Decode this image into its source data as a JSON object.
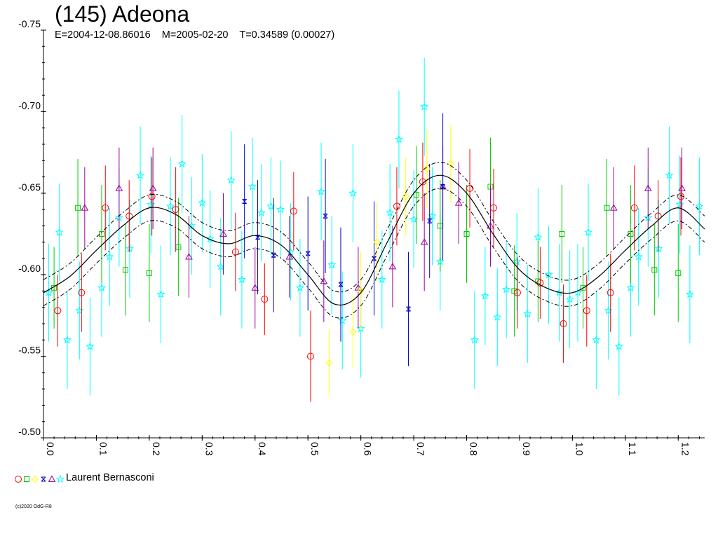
{
  "title": "(145) Adeona",
  "subtitle": "E=2004-12-08.86016    M=2005-02-20    T=0.34589 (0.00027)",
  "legend": {
    "label": "Laurent Bernasconi",
    "markers": [
      {
        "symbol": "circle",
        "color": "#ff0000"
      },
      {
        "symbol": "square",
        "color": "#00cc00"
      },
      {
        "symbol": "diamond",
        "color": "#ffff00"
      },
      {
        "symbol": "xsquare",
        "color": "#0000cc"
      },
      {
        "symbol": "triangle",
        "color": "#990099"
      },
      {
        "symbol": "star",
        "color": "#00ffff"
      }
    ]
  },
  "credit": "(c)2020 OdG-R8",
  "chart_data": {
    "type": "scatter",
    "xlim": [
      0,
      1.25
    ],
    "ylim": [
      -0.75,
      -0.5
    ],
    "y_inverted": true,
    "xticks": [
      "0.0",
      "0.1",
      "0.2",
      "0.3",
      "0.4",
      "0.5",
      "0.6",
      "0.7",
      "0.8",
      "0.9",
      "1.0",
      "1.1",
      "1.2"
    ],
    "yticks": [
      "-0.75",
      "-0.70",
      "-0.65",
      "-0.60",
      "-0.55",
      "-0.50"
    ],
    "fit_curve": {
      "x": [
        0.0,
        0.05,
        0.1,
        0.15,
        0.2,
        0.25,
        0.3,
        0.35,
        0.4,
        0.45,
        0.5,
        0.55,
        0.6,
        0.65,
        0.7,
        0.75,
        0.8,
        0.85,
        0.9,
        0.95,
        1.0,
        1.05,
        1.1,
        1.15,
        1.2,
        1.25
      ],
      "y": [
        -0.589,
        -0.599,
        -0.615,
        -0.63,
        -0.641,
        -0.637,
        -0.624,
        -0.619,
        -0.624,
        -0.618,
        -0.6,
        -0.582,
        -0.589,
        -0.62,
        -0.65,
        -0.661,
        -0.65,
        -0.625,
        -0.603,
        -0.592,
        -0.589,
        -0.599,
        -0.615,
        -0.63,
        -0.641,
        -0.628
      ],
      "band": 0.008
    },
    "series": [
      {
        "name": "",
        "marker": "circle",
        "color": "#ff0000",
        "points": [
          {
            "x": 0.027,
            "y": -0.578,
            "e": 0.022
          },
          {
            "x": 0.072,
            "y": -0.589,
            "e": 0.024
          },
          {
            "x": 0.117,
            "y": -0.641,
            "e": 0.026
          },
          {
            "x": 0.162,
            "y": -0.636,
            "e": 0.022
          },
          {
            "x": 0.205,
            "y": -0.648,
            "e": 0.024
          },
          {
            "x": 0.25,
            "y": -0.64,
            "e": 0.026
          },
          {
            "x": 0.363,
            "y": -0.614,
            "e": 0.024
          },
          {
            "x": 0.418,
            "y": -0.585,
            "e": 0.022
          },
          {
            "x": 0.473,
            "y": -0.639,
            "e": 0.024
          },
          {
            "x": 0.505,
            "y": -0.55,
            "e": 0.028
          },
          {
            "x": 0.668,
            "y": -0.642,
            "e": 0.024
          },
          {
            "x": 0.717,
            "y": -0.657,
            "e": 0.024
          },
          {
            "x": 0.806,
            "y": -0.653,
            "e": 0.024
          },
          {
            "x": 0.851,
            "y": -0.641,
            "e": 0.024
          },
          {
            "x": 0.896,
            "y": -0.589,
            "e": 0.022
          },
          {
            "x": 0.939,
            "y": -0.595,
            "e": 0.022
          },
          {
            "x": 0.983,
            "y": -0.57,
            "e": 0.024
          },
          {
            "x": 1.027,
            "y": -0.578,
            "e": 0.022
          },
          {
            "x": 1.072,
            "y": -0.589,
            "e": 0.024
          },
          {
            "x": 1.117,
            "y": -0.641,
            "e": 0.026
          },
          {
            "x": 1.162,
            "y": -0.636,
            "e": 0.022
          },
          {
            "x": 1.205,
            "y": -0.648,
            "e": 0.024
          }
        ]
      },
      {
        "name": "",
        "marker": "square",
        "color": "#00cc00",
        "points": [
          {
            "x": 0.02,
            "y": -0.592,
            "e": 0.025
          },
          {
            "x": 0.065,
            "y": -0.641,
            "e": 0.03
          },
          {
            "x": 0.11,
            "y": -0.625,
            "e": 0.03
          },
          {
            "x": 0.155,
            "y": -0.603,
            "e": 0.028
          },
          {
            "x": 0.2,
            "y": -0.601,
            "e": 0.03
          },
          {
            "x": 0.255,
            "y": -0.617,
            "e": 0.03
          },
          {
            "x": 0.705,
            "y": -0.649,
            "e": 0.03
          },
          {
            "x": 0.75,
            "y": -0.63,
            "e": 0.028
          },
          {
            "x": 0.8,
            "y": -0.625,
            "e": 0.03
          },
          {
            "x": 0.845,
            "y": -0.654,
            "e": 0.03
          },
          {
            "x": 0.89,
            "y": -0.59,
            "e": 0.028
          },
          {
            "x": 0.935,
            "y": -0.596,
            "e": 0.025
          },
          {
            "x": 0.98,
            "y": -0.625,
            "e": 0.03
          },
          {
            "x": 1.02,
            "y": -0.592,
            "e": 0.025
          },
          {
            "x": 1.065,
            "y": -0.641,
            "e": 0.03
          },
          {
            "x": 1.11,
            "y": -0.625,
            "e": 0.03
          },
          {
            "x": 1.155,
            "y": -0.603,
            "e": 0.028
          },
          {
            "x": 1.2,
            "y": -0.601,
            "e": 0.03
          }
        ]
      },
      {
        "name": "",
        "marker": "diamond",
        "color": "#ffff00",
        "points": [
          {
            "x": 0.54,
            "y": -0.546,
            "e": 0.02
          },
          {
            "x": 0.585,
            "y": -0.565,
            "e": 0.022
          },
          {
            "x": 0.6,
            "y": -0.59,
            "e": 0.024
          },
          {
            "x": 0.63,
            "y": -0.62,
            "e": 0.024
          },
          {
            "x": 0.685,
            "y": -0.648,
            "e": 0.024
          },
          {
            "x": 0.725,
            "y": -0.665,
            "e": 0.024
          },
          {
            "x": 0.77,
            "y": -0.668,
            "e": 0.024
          }
        ]
      },
      {
        "name": "",
        "marker": "xsquare",
        "color": "#0000cc",
        "points": [
          {
            "x": 0.38,
            "y": -0.645,
            "e": 0.035
          },
          {
            "x": 0.405,
            "y": -0.623,
            "e": 0.035
          },
          {
            "x": 0.435,
            "y": -0.612,
            "e": 0.035
          },
          {
            "x": 0.5,
            "y": -0.613,
            "e": 0.035
          },
          {
            "x": 0.533,
            "y": -0.636,
            "e": 0.035
          },
          {
            "x": 0.562,
            "y": -0.594,
            "e": 0.035
          },
          {
            "x": 0.625,
            "y": -0.61,
            "e": 0.035
          },
          {
            "x": 0.69,
            "y": -0.579,
            "e": 0.035
          },
          {
            "x": 0.73,
            "y": -0.633,
            "e": 0.035
          },
          {
            "x": 0.755,
            "y": -0.654,
            "e": 0.045
          }
        ]
      },
      {
        "name": "",
        "marker": "triangle",
        "color": "#990099",
        "points": [
          {
            "x": 0.078,
            "y": -0.641,
            "e": 0.025
          },
          {
            "x": 0.143,
            "y": -0.653,
            "e": 0.025
          },
          {
            "x": 0.207,
            "y": -0.653,
            "e": 0.025
          },
          {
            "x": 0.275,
            "y": -0.611,
            "e": 0.025
          },
          {
            "x": 0.34,
            "y": -0.625,
            "e": 0.025
          },
          {
            "x": 0.4,
            "y": -0.592,
            "e": 0.025
          },
          {
            "x": 0.465,
            "y": -0.611,
            "e": 0.025
          },
          {
            "x": 0.53,
            "y": -0.596,
            "e": 0.025
          },
          {
            "x": 0.595,
            "y": -0.592,
            "e": 0.025
          },
          {
            "x": 0.66,
            "y": -0.605,
            "e": 0.025
          },
          {
            "x": 0.72,
            "y": -0.62,
            "e": 0.03
          },
          {
            "x": 0.755,
            "y": -0.654,
            "e": 0.025
          },
          {
            "x": 0.785,
            "y": -0.644,
            "e": 0.025
          },
          {
            "x": 0.845,
            "y": -0.63,
            "e": 0.025
          },
          {
            "x": 1.078,
            "y": -0.641,
            "e": 0.025
          },
          {
            "x": 1.143,
            "y": -0.653,
            "e": 0.025
          },
          {
            "x": 1.207,
            "y": -0.653,
            "e": 0.025
          }
        ]
      },
      {
        "name": "",
        "marker": "star",
        "color": "#00ffff",
        "points": [
          {
            "x": 0.01,
            "y": -0.589,
            "e": 0.03
          },
          {
            "x": 0.03,
            "y": -0.626,
            "e": 0.03
          },
          {
            "x": 0.045,
            "y": -0.56,
            "e": 0.03
          },
          {
            "x": 0.068,
            "y": -0.578,
            "e": 0.03
          },
          {
            "x": 0.088,
            "y": -0.556,
            "e": 0.03
          },
          {
            "x": 0.11,
            "y": -0.592,
            "e": 0.03
          },
          {
            "x": 0.125,
            "y": -0.611,
            "e": 0.03
          },
          {
            "x": 0.143,
            "y": -0.635,
            "e": 0.03
          },
          {
            "x": 0.163,
            "y": -0.616,
            "e": 0.03
          },
          {
            "x": 0.183,
            "y": -0.661,
            "e": 0.03
          },
          {
            "x": 0.203,
            "y": -0.643,
            "e": 0.03
          },
          {
            "x": 0.222,
            "y": -0.588,
            "e": 0.03
          },
          {
            "x": 0.24,
            "y": -0.642,
            "e": 0.03
          },
          {
            "x": 0.262,
            "y": -0.668,
            "e": 0.03
          },
          {
            "x": 0.28,
            "y": -0.63,
            "e": 0.03
          },
          {
            "x": 0.3,
            "y": -0.644,
            "e": 0.03
          },
          {
            "x": 0.315,
            "y": -0.622,
            "e": 0.03
          },
          {
            "x": 0.335,
            "y": -0.605,
            "e": 0.03
          },
          {
            "x": 0.355,
            "y": -0.658,
            "e": 0.03
          },
          {
            "x": 0.375,
            "y": -0.597,
            "e": 0.03
          },
          {
            "x": 0.395,
            "y": -0.654,
            "e": 0.03
          },
          {
            "x": 0.412,
            "y": -0.638,
            "e": 0.03
          },
          {
            "x": 0.43,
            "y": -0.642,
            "e": 0.03
          },
          {
            "x": 0.448,
            "y": -0.64,
            "e": 0.03
          },
          {
            "x": 0.467,
            "y": -0.614,
            "e": 0.03
          },
          {
            "x": 0.485,
            "y": -0.592,
            "e": 0.03
          },
          {
            "x": 0.525,
            "y": -0.651,
            "e": 0.03
          },
          {
            "x": 0.545,
            "y": -0.606,
            "e": 0.03
          },
          {
            "x": 0.565,
            "y": -0.572,
            "e": 0.03
          },
          {
            "x": 0.585,
            "y": -0.65,
            "e": 0.03
          },
          {
            "x": 0.6,
            "y": -0.567,
            "e": 0.03
          },
          {
            "x": 0.64,
            "y": -0.597,
            "e": 0.03
          },
          {
            "x": 0.655,
            "y": -0.638,
            "e": 0.03
          },
          {
            "x": 0.672,
            "y": -0.683,
            "e": 0.03
          },
          {
            "x": 0.7,
            "y": -0.634,
            "e": 0.03
          },
          {
            "x": 0.72,
            "y": -0.703,
            "e": 0.03
          },
          {
            "x": 0.735,
            "y": -0.636,
            "e": 0.03
          },
          {
            "x": 0.75,
            "y": -0.608,
            "e": 0.03
          },
          {
            "x": 0.815,
            "y": -0.56,
            "e": 0.03
          },
          {
            "x": 0.835,
            "y": -0.587,
            "e": 0.03
          },
          {
            "x": 0.858,
            "y": -0.574,
            "e": 0.03
          },
          {
            "x": 0.875,
            "y": -0.591,
            "e": 0.03
          },
          {
            "x": 0.895,
            "y": -0.608,
            "e": 0.03
          },
          {
            "x": 0.915,
            "y": -0.576,
            "e": 0.03
          },
          {
            "x": 0.935,
            "y": -0.623,
            "e": 0.03
          },
          {
            "x": 0.955,
            "y": -0.6,
            "e": 0.03
          },
          {
            "x": 0.975,
            "y": -0.589,
            "e": 0.03
          },
          {
            "x": 0.995,
            "y": -0.585,
            "e": 0.03
          },
          {
            "x": 1.01,
            "y": -0.589,
            "e": 0.03
          },
          {
            "x": 1.03,
            "y": -0.626,
            "e": 0.03
          },
          {
            "x": 1.045,
            "y": -0.56,
            "e": 0.03
          },
          {
            "x": 1.068,
            "y": -0.578,
            "e": 0.03
          },
          {
            "x": 1.088,
            "y": -0.556,
            "e": 0.03
          },
          {
            "x": 1.11,
            "y": -0.592,
            "e": 0.03
          },
          {
            "x": 1.125,
            "y": -0.611,
            "e": 0.03
          },
          {
            "x": 1.143,
            "y": -0.635,
            "e": 0.03
          },
          {
            "x": 1.163,
            "y": -0.616,
            "e": 0.03
          },
          {
            "x": 1.183,
            "y": -0.661,
            "e": 0.03
          },
          {
            "x": 1.203,
            "y": -0.643,
            "e": 0.03
          },
          {
            "x": 1.222,
            "y": -0.588,
            "e": 0.03
          },
          {
            "x": 1.24,
            "y": -0.642,
            "e": 0.03
          }
        ]
      }
    ]
  }
}
